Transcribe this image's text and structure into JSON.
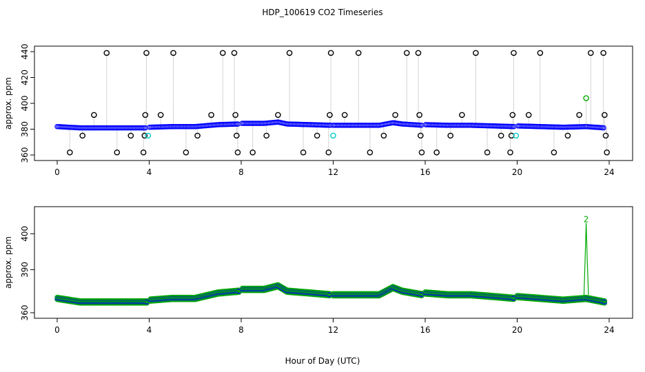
{
  "title": "HDP_100619  CO2 Timeseries",
  "xlabel": "Hour of Day (UTC)",
  "colors": {
    "primary": "#0000ff",
    "outlier": "#000000",
    "flag": "#00cccc",
    "secondary": "#00aa00",
    "connector": "#aaaaaa"
  },
  "chart_data": [
    {
      "type": "scatter",
      "panel": "top",
      "ylabel": "approx. ppm",
      "xlim": [
        0,
        24
      ],
      "ylim": [
        360,
        440
      ],
      "xticks": [
        0,
        4,
        8,
        12,
        16,
        20,
        24
      ],
      "yticks": [
        360,
        380,
        400,
        420,
        440
      ],
      "series": [
        {
          "role": "primary",
          "style": "blue circles (continuous)",
          "x": [
            0,
            1,
            2,
            3,
            3.9,
            4.0,
            5,
            6,
            7,
            7.9,
            8.0,
            9,
            9.6,
            10,
            11,
            11.9,
            12.0,
            13,
            14,
            14.6,
            15,
            15.9,
            16.0,
            17,
            18,
            19,
            19.9,
            20.0,
            21,
            22,
            23,
            23.8
          ],
          "y": [
            382,
            381,
            381,
            381,
            381,
            381.5,
            382,
            382,
            383.5,
            384,
            384.5,
            384.5,
            385.5,
            384,
            383.5,
            383,
            383,
            383,
            383,
            385,
            384,
            383,
            383.5,
            383,
            383,
            382.5,
            382,
            382.5,
            382,
            381.5,
            382,
            381
          ]
        },
        {
          "role": "outlier",
          "style": "black open circles",
          "x": [
            0.55,
            1.1,
            1.6,
            2.15,
            2.6,
            3.2,
            3.75,
            3.8,
            3.83,
            3.88,
            4.5,
            5.05,
            5.6,
            6.1,
            6.7,
            7.2,
            7.7,
            7.75,
            7.8,
            7.85,
            8.5,
            9.1,
            9.6,
            10.1,
            10.7,
            11.3,
            11.8,
            11.85,
            11.9,
            12.5,
            13.1,
            13.6,
            14.2,
            14.7,
            15.2,
            15.7,
            15.75,
            15.8,
            15.85,
            16.5,
            17.1,
            17.6,
            18.2,
            18.7,
            19.3,
            19.7,
            19.75,
            19.8,
            19.85,
            20.5,
            21.0,
            21.6,
            22.2,
            22.7,
            23.2,
            23.75,
            23.8,
            23.85,
            23.9
          ],
          "y": [
            362,
            375,
            391,
            439,
            362,
            375,
            362,
            375,
            391,
            439,
            391,
            439,
            362,
            375,
            391,
            439,
            439,
            391,
            375,
            362,
            362,
            375,
            391,
            439,
            362,
            375,
            362,
            391,
            439,
            391,
            439,
            362,
            375,
            391,
            439,
            439,
            391,
            375,
            362,
            362,
            375,
            391,
            439,
            362,
            375,
            362,
            375,
            391,
            439,
            391,
            439,
            362,
            375,
            391,
            439,
            439,
            391,
            375,
            362
          ]
        },
        {
          "role": "flag",
          "style": "cyan circles",
          "x": [
            3.95,
            12.0,
            19.95
          ],
          "y": [
            375,
            375,
            375
          ]
        },
        {
          "role": "secondary",
          "style": "green circle",
          "x": [
            23.0
          ],
          "y": [
            404
          ]
        }
      ]
    },
    {
      "type": "scatter",
      "panel": "bottom",
      "ylabel": "approx. ppm",
      "xlim": [
        0,
        24
      ],
      "ylim": [
        360,
        405
      ],
      "xticks": [
        0,
        4,
        8,
        12,
        16,
        20,
        24
      ],
      "yticks": [
        360,
        390,
        400
      ],
      "series": [
        {
          "role": "primary",
          "style": "blue circles",
          "x": [
            0,
            1,
            2,
            3,
            3.9,
            4.0,
            5,
            6,
            7,
            7.9,
            8.0,
            9,
            9.6,
            10,
            11,
            11.9,
            12.0,
            13,
            14,
            14.6,
            15,
            15.9,
            16.0,
            17,
            18,
            19,
            19.9,
            20.0,
            21,
            22,
            23,
            23.8
          ],
          "y": [
            382,
            381,
            381,
            381,
            381,
            381.5,
            382,
            382,
            383.5,
            384,
            384.5,
            384.5,
            385.5,
            384,
            383.5,
            383,
            383,
            383,
            383,
            385,
            384,
            383,
            383.5,
            383,
            383,
            382.5,
            382,
            382.5,
            382,
            381.5,
            382,
            381
          ]
        },
        {
          "role": "secondary",
          "style": "green line with peak",
          "x": [
            22.9,
            22.95,
            23.0,
            23.05,
            23.1
          ],
          "y": [
            382,
            392,
            403,
            392,
            383
          ]
        }
      ],
      "annotations": [
        {
          "text": "2",
          "x": 23.0,
          "y": 404
        }
      ]
    }
  ]
}
